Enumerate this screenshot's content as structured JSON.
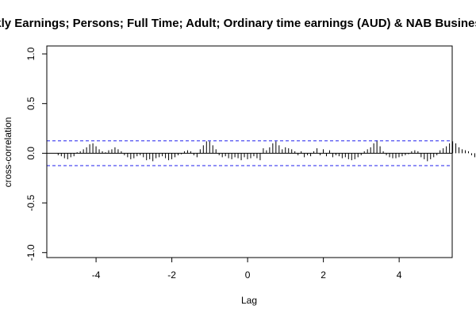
{
  "chart_data": {
    "type": "bar",
    "title": "ekly Earnings; Persons; Full Time; Adult; Ordinary time earnings (AUD) & NAB Business",
    "xlabel": "Lag",
    "ylabel": "cross-correlation",
    "xlim": [
      -5.3,
      5.4
    ],
    "ylim": [
      -1.05,
      1.08
    ],
    "x_ticks": [
      "-4",
      "-2",
      "0",
      "2",
      "4"
    ],
    "y_ticks": [
      "-1.0",
      "-0.5",
      "0.0",
      "0.5",
      "1.0"
    ],
    "ci": 0.125,
    "colors": {
      "bars": "#000000",
      "ci": "#2222ee",
      "axis": "#000000"
    },
    "lag_step": 0.0833,
    "lag_start": -5.0,
    "values": [
      -0.02,
      -0.03,
      -0.05,
      -0.06,
      -0.04,
      -0.03,
      0.01,
      0.02,
      0.04,
      0.06,
      0.09,
      0.1,
      0.07,
      0.04,
      0.02,
      0.01,
      0.03,
      0.04,
      0.06,
      0.04,
      0.02,
      -0.02,
      -0.04,
      -0.06,
      -0.05,
      -0.03,
      -0.02,
      -0.04,
      -0.07,
      -0.06,
      -0.08,
      -0.05,
      -0.04,
      -0.03,
      -0.05,
      -0.07,
      -0.06,
      -0.04,
      -0.02,
      -0.01,
      0.02,
      0.03,
      0.02,
      -0.02,
      -0.04,
      0.04,
      0.08,
      0.12,
      0.12,
      0.08,
      0.04,
      -0.02,
      -0.04,
      -0.03,
      -0.05,
      -0.06,
      -0.04,
      -0.05,
      -0.07,
      -0.04,
      -0.06,
      -0.05,
      -0.03,
      -0.05,
      -0.07,
      0.05,
      0.03,
      0.06,
      0.1,
      0.12,
      0.08,
      0.04,
      0.06,
      0.05,
      0.04,
      0.02,
      -0.02,
      0.02,
      -0.04,
      -0.02,
      -0.03,
      0.02,
      0.05,
      -0.02,
      0.04,
      -0.03,
      0.03,
      -0.04,
      -0.02,
      -0.03,
      -0.05,
      -0.04,
      -0.06,
      -0.07,
      -0.06,
      -0.04,
      -0.02,
      0.02,
      0.04,
      0.06,
      0.1,
      0.13,
      0.07,
      0.02,
      -0.02,
      -0.04,
      -0.05,
      -0.05,
      -0.04,
      -0.03,
      -0.02,
      -0.01,
      0.02,
      0.03,
      0.02,
      -0.04,
      -0.06,
      -0.08,
      -0.06,
      -0.04,
      -0.02,
      0.03,
      0.05,
      0.07,
      0.1,
      0.12,
      0.1,
      0.06,
      0.04,
      0.03,
      0.02,
      -0.02,
      -0.04,
      -0.06,
      -0.08,
      -0.05,
      -0.02,
      -0.03,
      -0.06
    ]
  }
}
